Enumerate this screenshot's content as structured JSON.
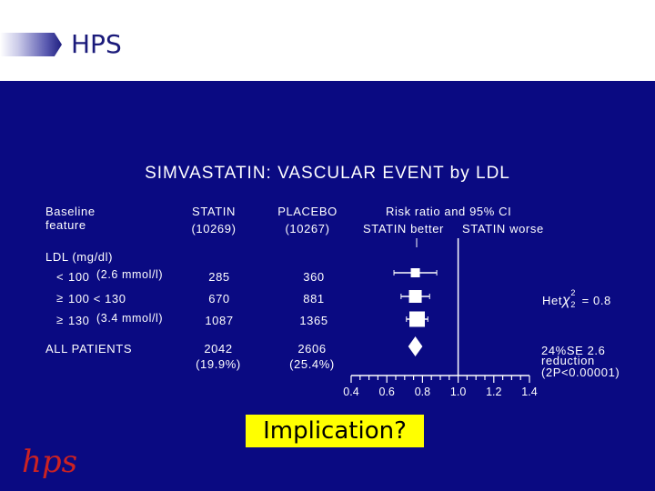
{
  "header": {
    "title": "HPS"
  },
  "slide": {
    "title": "SIMVASTATIN: VASCULAR EVENT by LDL",
    "col_feature_1": "Baseline",
    "col_feature_2": "feature",
    "col_statin_1": "STATIN",
    "col_statin_2": "(10269)",
    "col_placebo_1": "PLACEBO",
    "col_placebo_2": "(10267)",
    "col_rr": "Risk ratio and 95% CI",
    "col_better": "STATIN better",
    "col_worse": "STATIN worse",
    "section_label": "LDL (mg/dl)",
    "rows": [
      {
        "sym": "<",
        "label": "100",
        "sub": "(2.6 mmol/l)",
        "statin": "285",
        "placebo": "360"
      },
      {
        "sym": "≥",
        "label": "100 < 130",
        "sub": "",
        "statin": "670",
        "placebo": "881"
      },
      {
        "sym": "≥",
        "label": "130",
        "sub": "(3.4 mmol/l)",
        "statin": "1087",
        "placebo": "1365"
      }
    ],
    "total": {
      "label": "ALL PATIENTS",
      "statin": "2042",
      "statin_pct": "(19.9%)",
      "placebo": "2606",
      "placebo_pct": "(25.4%)"
    },
    "het": "Het",
    "het_chi": "χ",
    "het_sup": "2",
    "het_sub": "2",
    "het_value": "= 0.8",
    "reduction_1": "24%SE 2.6",
    "reduction_2": "reduction",
    "reduction_3": "(2P<0.00001)",
    "implication": "Implication?"
  },
  "chart_data": {
    "type": "forest",
    "x_ticks": [
      0.4,
      0.6,
      0.8,
      1.0,
      1.2,
      1.4
    ],
    "x_range": [
      0.4,
      1.4
    ],
    "reference_line": 1.0,
    "rows": [
      {
        "label": "< 100 (2.6 mmol/l)",
        "ratio": 0.76,
        "ci": [
          0.64,
          0.88
        ]
      },
      {
        "label": "≥ 100 < 130",
        "ratio": 0.76,
        "ci": [
          0.68,
          0.84
        ]
      },
      {
        "label": "≥ 130 (3.4 mmol/l)",
        "ratio": 0.77,
        "ci": [
          0.71,
          0.83
        ]
      },
      {
        "label": "ALL PATIENTS",
        "ratio": 0.76,
        "ci": [
          0.72,
          0.8
        ]
      }
    ],
    "colors": {
      "background": "#0a0a82",
      "marks": "#ffffff",
      "highlight": "#ffff00",
      "logo": "#cc2222"
    }
  }
}
